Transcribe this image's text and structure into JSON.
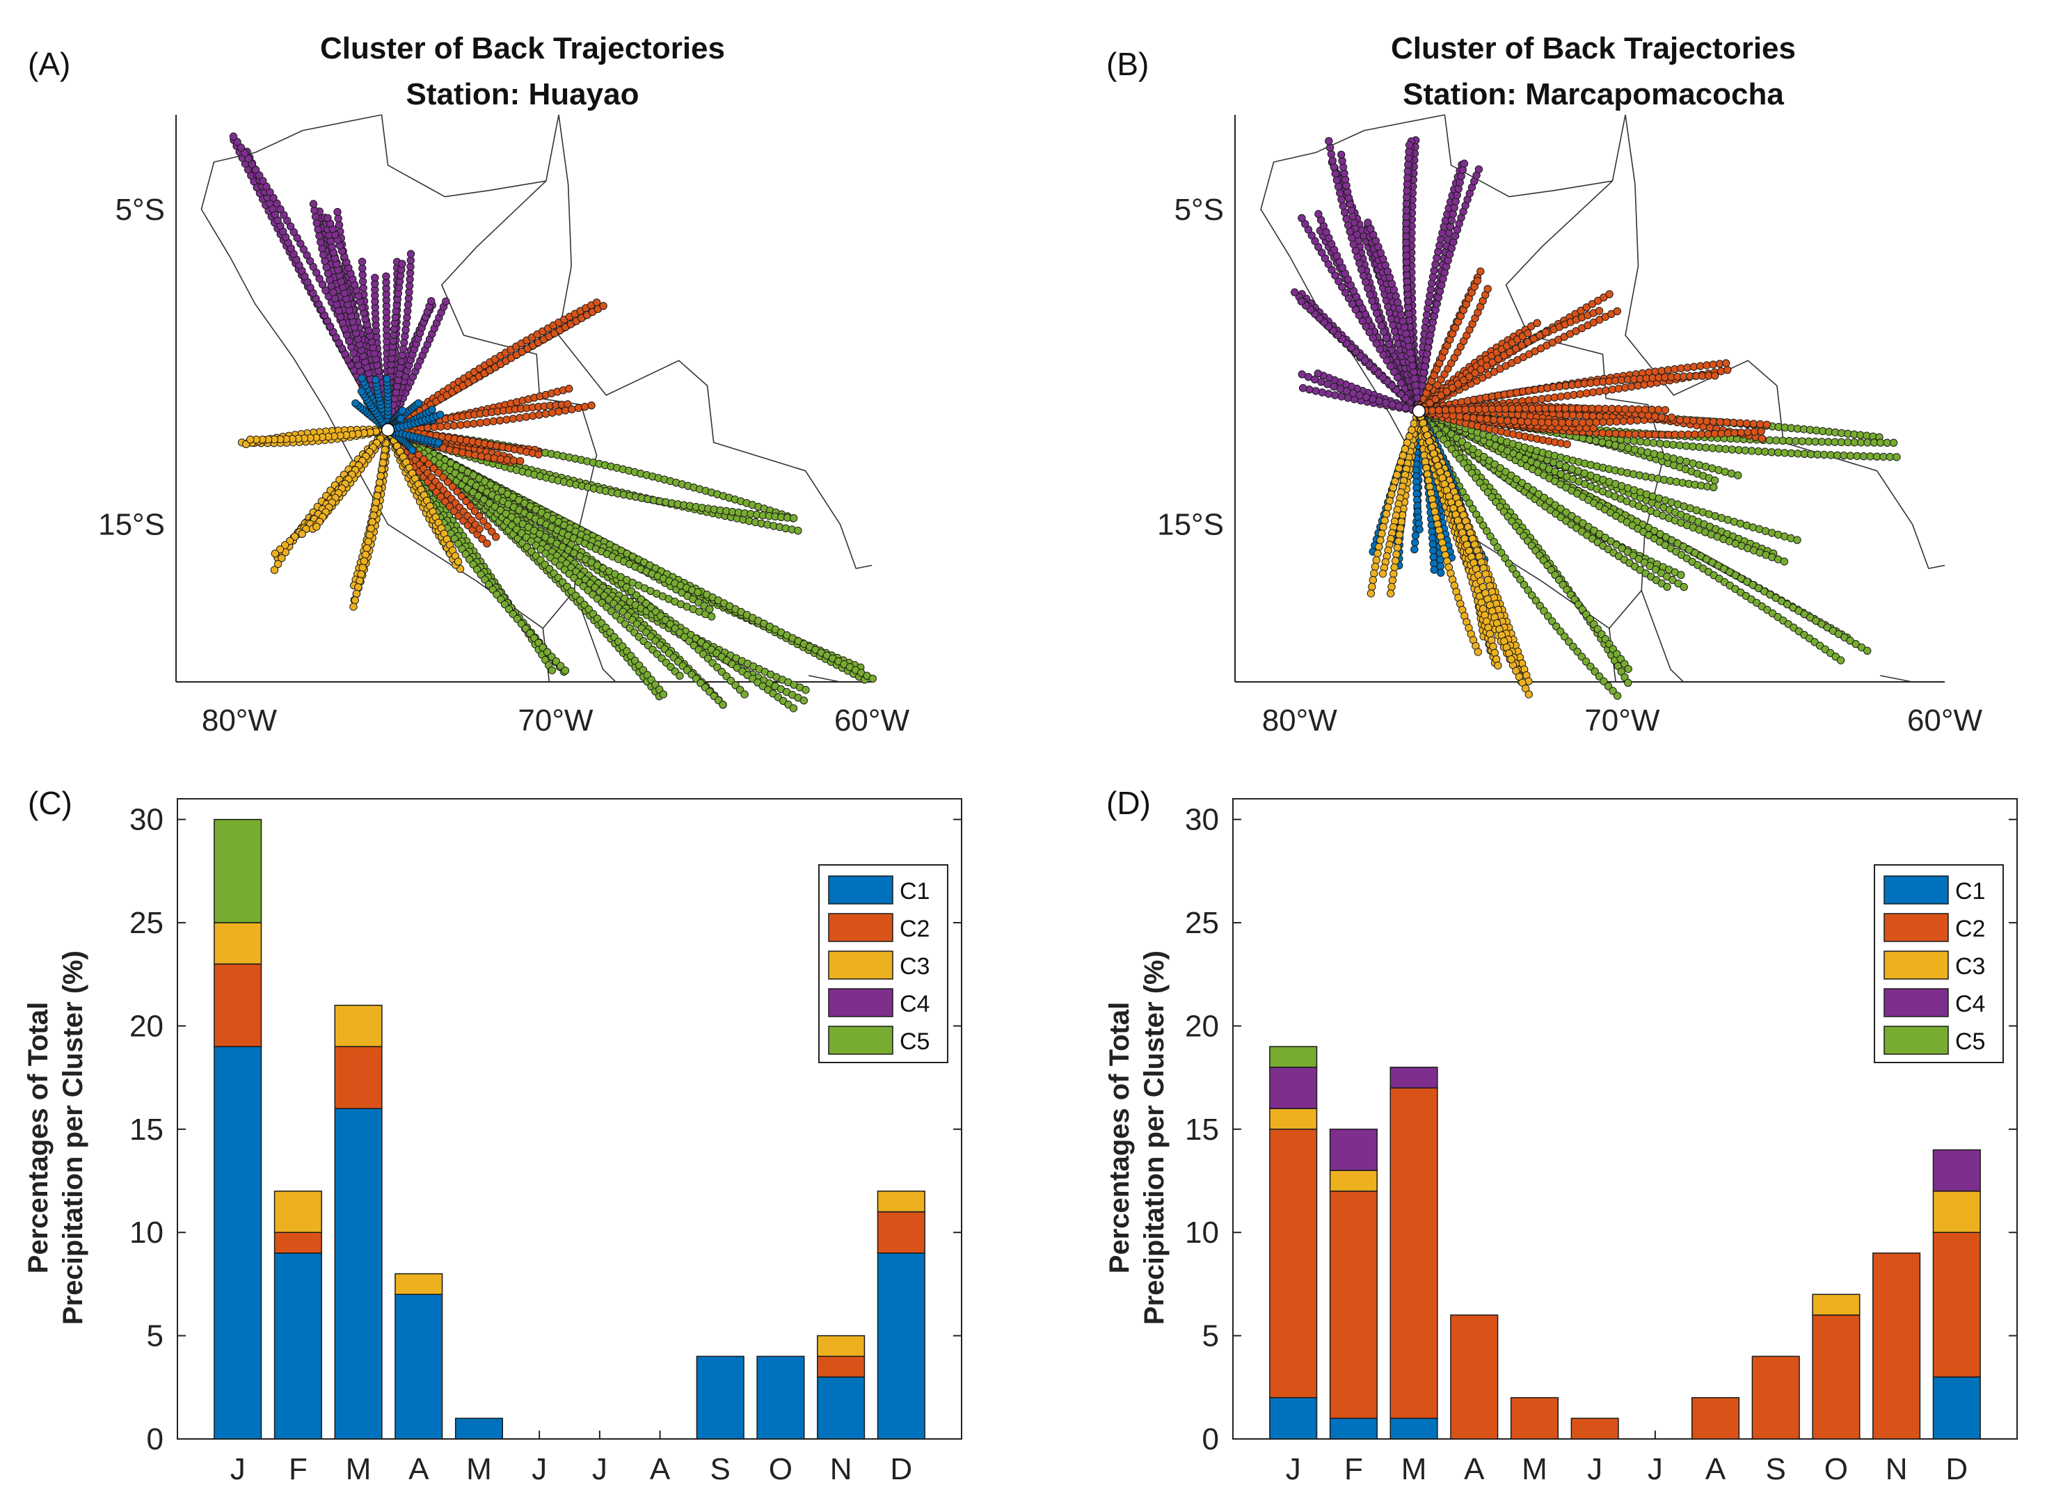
{
  "colors": {
    "C1": "#0072BD",
    "C2": "#D95319",
    "C3": "#EDB120",
    "C4": "#7E2F8E",
    "C5": "#77AC30",
    "station": "#ffffff",
    "coast": "#333333",
    "axis": "#222222"
  },
  "maps": [
    {
      "letter": "(A)",
      "title_line1": "Cluster of Back Trajectories",
      "title_line2": "Station: Huayao",
      "lat_ticks": [
        {
          "value": -5,
          "label": "5°S"
        },
        {
          "value": -15,
          "label": "15°S"
        }
      ],
      "lon_ticks": [
        {
          "value": -80,
          "label": "80°W"
        },
        {
          "value": -70,
          "label": "70°W"
        },
        {
          "value": -60,
          "label": "60°W"
        }
      ],
      "lon_range": [
        -82,
        -60
      ],
      "lat_range": [
        -20,
        -2
      ],
      "station": {
        "lon": -75.3,
        "lat": -12.0
      },
      "trajectory_colors": [
        "C1",
        "C2",
        "C3",
        "C4",
        "C5"
      ]
    },
    {
      "letter": "(B)",
      "title_line1": "Cluster of Back Trajectories",
      "title_line2": "Station: Marcapomacocha",
      "lat_ticks": [
        {
          "value": -5,
          "label": "5°S"
        },
        {
          "value": -15,
          "label": "15°S"
        }
      ],
      "lon_ticks": [
        {
          "value": -80,
          "label": "80°W"
        },
        {
          "value": -70,
          "label": "70°W"
        },
        {
          "value": -60,
          "label": "60°W"
        }
      ],
      "lon_range": [
        -82,
        -60
      ],
      "lat_range": [
        -20,
        -2
      ],
      "station": {
        "lon": -76.3,
        "lat": -11.4
      },
      "trajectory_colors": [
        "C1",
        "C2",
        "C3",
        "C4",
        "C5"
      ]
    }
  ],
  "chart_data": [
    {
      "panel": "(C)",
      "type": "bar",
      "stacked": true,
      "categories": [
        "J",
        "F",
        "M",
        "A",
        "M",
        "J",
        "J",
        "A",
        "S",
        "O",
        "N",
        "D"
      ],
      "series": [
        {
          "name": "C1",
          "values": [
            19,
            9,
            16,
            7,
            1,
            0,
            0,
            0,
            4,
            4,
            3,
            9
          ]
        },
        {
          "name": "C2",
          "values": [
            4,
            1,
            3,
            0,
            0,
            0,
            0,
            0,
            0,
            0,
            1,
            2
          ]
        },
        {
          "name": "C3",
          "values": [
            2,
            2,
            2,
            1,
            0,
            0,
            0,
            0,
            0,
            0,
            1,
            1
          ]
        },
        {
          "name": "C4",
          "values": [
            0,
            0,
            0,
            0,
            0,
            0,
            0,
            0,
            0,
            0,
            0,
            0
          ]
        },
        {
          "name": "C5",
          "values": [
            5,
            0,
            0,
            0,
            0,
            0,
            0,
            0,
            0,
            0,
            0,
            0
          ]
        }
      ],
      "ylabel_line1": "Percentages of Total",
      "ylabel_line2": "Precipitation per Cluster (%)",
      "ylim": [
        0,
        31
      ],
      "yticks": [
        0,
        5,
        10,
        15,
        20,
        25,
        30
      ],
      "legend_position": "top-right",
      "grid": false
    },
    {
      "panel": "(D)",
      "type": "bar",
      "stacked": true,
      "categories": [
        "J",
        "F",
        "M",
        "A",
        "M",
        "J",
        "J",
        "A",
        "S",
        "O",
        "N",
        "D"
      ],
      "series": [
        {
          "name": "C1",
          "values": [
            2,
            1,
            1,
            0,
            0,
            0,
            0,
            0,
            0,
            0,
            0,
            3
          ]
        },
        {
          "name": "C2",
          "values": [
            13,
            11,
            16,
            6,
            2,
            1,
            0,
            2,
            4,
            6,
            9,
            7
          ]
        },
        {
          "name": "C3",
          "values": [
            1,
            1,
            0,
            0,
            0,
            0,
            0,
            0,
            0,
            1,
            0,
            2
          ]
        },
        {
          "name": "C4",
          "values": [
            2,
            2,
            1,
            0,
            0,
            0,
            0,
            0,
            0,
            0,
            0,
            2
          ]
        },
        {
          "name": "C5",
          "values": [
            1,
            0,
            0,
            0,
            0,
            0,
            0,
            0,
            0,
            0,
            0,
            0
          ]
        }
      ],
      "ylabel_line1": "Percentages of Total",
      "ylabel_line2": "Precipitation per Cluster (%)",
      "ylim": [
        0,
        31
      ],
      "yticks": [
        0,
        5,
        10,
        15,
        20,
        25,
        30
      ],
      "legend_position": "top-right",
      "grid": false
    }
  ]
}
